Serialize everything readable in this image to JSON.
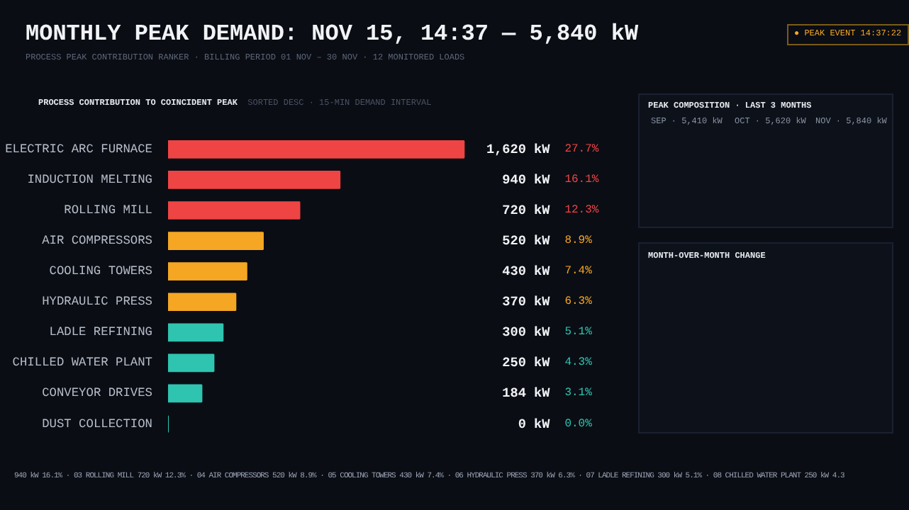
{
  "chart_data": {
    "type": "bar",
    "orientation": "horizontal",
    "title": "MONTHLY PEAK DEMAND: NOV 15, 14:37 — 5,840 kW",
    "subtitle": "PROCESS PEAK CONTRIBUTION RANKER · BILLING PERIOD 01 NOV – 30 NOV · 12 MONITORED LOADS",
    "xlabel": "PROCESS CONTRIBUTION TO COINCIDENT PEAK",
    "categories": [
      "ELECTRIC ARC FURNACE",
      "INDUCTION MELTING",
      "ROLLING MILL",
      "AIR COMPRESSORS",
      "COOLING TOWERS",
      "HYDRAULIC PRESS",
      "LADLE REFINING",
      "CHILLED WATER PLANT",
      "CONVEYOR DRIVES",
      "DUST COLLECTION"
    ],
    "values": [
      1620,
      940,
      720,
      520,
      430,
      370,
      300,
      250,
      184,
      0
    ],
    "colors": [
      "#ef4444",
      "#ef4444",
      "#ef4444",
      "#f5a623",
      "#f5a623",
      "#f5a623",
      "#2ec4b0",
      "#2ec4b0",
      "#2ec4b0",
      "#2ec4b0"
    ],
    "value_labels": [
      "1,620 kW",
      "940 kW",
      "720 kW",
      "520 kW",
      "430 kW",
      "370 kW",
      "300 kW",
      "250 kW",
      "184 kW",
      "0 kW"
    ],
    "annotations": [
      "● PEAK EVENT 14:37:22",
      "SORTED DESC · 15-MIN DEMAND INTERVAL",
      "PEAK COMPOSITION · LAST 3 MONTHS",
      "SEP · 5,410 kW",
      "OCT · 5,620 kW",
      "NOV · 5,840 kW",
      "MONTH-OVER-MONTH CHANGE",
      "940 kW 16.1% · 03 ROLLING MILL 720 kW 12.3% · 04 AIR COMPRESSORS 520 kW 8.9% · 05 COOLING TOWERS 430 kW 7.4% · 06 HYDRAULIC PRESS 370 kW 6.3% · 07 LADLE REFINING 300 kW 5.1% · 08 CHILLED WATER PLANT 250 kW 4.3",
      "27.7%",
      "16.1%",
      "12.3%",
      "8.9%",
      "7.4%",
      "6.3%",
      "5.1%",
      "4.3%",
      "3.1%",
      "0.0%"
    ]
  }
}
